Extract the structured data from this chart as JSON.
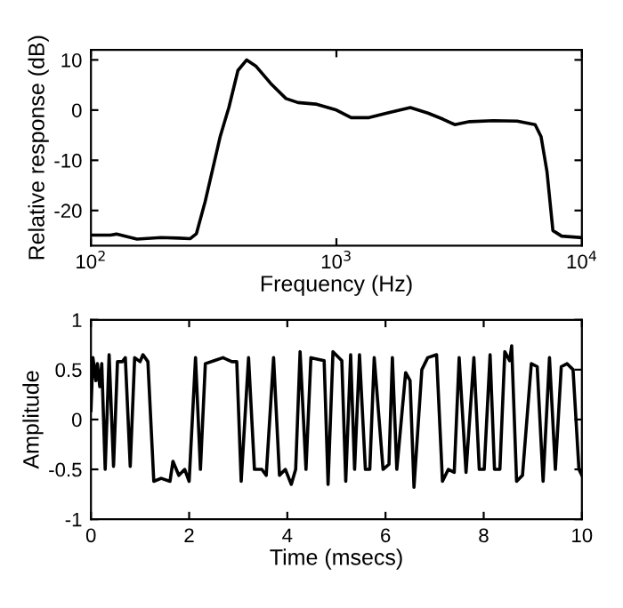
{
  "chart_data": [
    {
      "type": "line",
      "xlabel": "Frequency (Hz)",
      "ylabel": "Relative response (dB)",
      "log": "x",
      "xlim": [
        100,
        10000
      ],
      "ylim": [
        -27,
        12
      ],
      "xticks": [
        {
          "value": 100,
          "label": "10$^{2}$"
        },
        {
          "value": 1000,
          "label": "10$^{3}$"
        },
        {
          "value": 10000,
          "label": "10$^{4}$"
        }
      ],
      "yticks": [
        -20,
        -10,
        0,
        10
      ],
      "grid": false,
      "series": [
        {
          "color": "#000000",
          "x": [
            100,
            120,
            127,
            154,
            193,
            228,
            254,
            269,
            292,
            336,
            365,
            397,
            431,
            469,
            540,
            623,
            697,
            823,
            1000,
            1149,
            1358,
            1605,
            2000,
            2360,
            2715,
            3035,
            3490,
            4360,
            5450,
            6450,
            6820,
            7210,
            7620,
            8270,
            10000
          ],
          "values": [
            -24.9,
            -24.9,
            -24.7,
            -25.7,
            -25.4,
            -25.5,
            -25.6,
            -24.6,
            -18.2,
            -5.3,
            0.6,
            7.9,
            10,
            8.8,
            5.3,
            2.3,
            1.5,
            1.2,
            0,
            -1.5,
            -1.5,
            -0.6,
            0.5,
            -0.6,
            -1.8,
            -2.9,
            -2.3,
            -2.1,
            -2.2,
            -2.9,
            -5.3,
            -12.3,
            -24,
            -25.1,
            -25.4
          ]
        }
      ]
    },
    {
      "type": "line",
      "xlabel": "Time (msecs)",
      "ylabel": "Amplitude",
      "xlim": [
        0,
        10
      ],
      "ylim": [
        -1,
        1
      ],
      "xticks": [
        0,
        2,
        4,
        6,
        8,
        10
      ],
      "yticks": [
        -1,
        -0.5,
        0,
        0.5,
        1
      ],
      "grid": false,
      "series": [
        {
          "color": "#000000",
          "x": [
            0,
            0.04,
            0.1,
            0.13,
            0.18,
            0.22,
            0.29,
            0.37,
            0.46,
            0.54,
            0.64,
            0.7,
            0.8,
            0.89,
            1.0,
            1.06,
            1.16,
            1.28,
            1.43,
            1.61,
            1.67,
            1.79,
            1.91,
            2.0,
            2.13,
            2.23,
            2.33,
            2.51,
            2.69,
            2.87,
            2.97,
            3.06,
            3.21,
            3.33,
            3.48,
            3.57,
            3.72,
            3.84,
            3.96,
            4.08,
            4.17,
            4.26,
            4.38,
            4.48,
            4.75,
            4.83,
            4.93,
            5.11,
            5.19,
            5.29,
            5.37,
            5.47,
            5.59,
            5.68,
            5.77,
            5.95,
            6.07,
            6.14,
            6.23,
            6.41,
            6.5,
            6.58,
            6.74,
            6.86,
            7.04,
            7.16,
            7.28,
            7.4,
            7.5,
            7.64,
            7.8,
            7.91,
            8.01,
            8.13,
            8.22,
            8.33,
            8.43,
            8.53,
            8.57,
            8.67,
            8.79,
            8.97,
            9.09,
            9.21,
            9.34,
            9.46,
            9.58,
            9.7,
            9.82,
            9.94,
            10.0
          ],
          "values": [
            0.09,
            0.62,
            0.39,
            0.56,
            0.33,
            0.56,
            -0.5,
            0.65,
            -0.47,
            0.58,
            0.58,
            0.62,
            -0.47,
            0.62,
            0.58,
            0.65,
            0.58,
            -0.62,
            -0.59,
            -0.62,
            -0.42,
            -0.56,
            -0.5,
            -0.62,
            0.62,
            -0.5,
            0.56,
            0.59,
            0.62,
            0.58,
            0.58,
            -0.62,
            0.62,
            -0.5,
            -0.5,
            -0.56,
            0.62,
            -0.56,
            -0.5,
            -0.65,
            -0.5,
            0.68,
            -0.5,
            0.62,
            0.59,
            -0.65,
            0.68,
            0.59,
            -0.62,
            0.65,
            -0.5,
            0.65,
            -0.5,
            -0.5,
            0.62,
            -0.5,
            -0.45,
            0.62,
            -0.5,
            0.47,
            0.39,
            -0.68,
            0.5,
            0.62,
            0.65,
            -0.62,
            -0.5,
            -0.53,
            0.62,
            -0.53,
            0.62,
            -0.5,
            -0.5,
            0.65,
            -0.5,
            -0.5,
            0.68,
            0.59,
            0.74,
            -0.62,
            -0.56,
            0.56,
            0.53,
            -0.62,
            0.62,
            -0.5,
            0.53,
            0.56,
            0.5,
            -0.5,
            -0.56
          ]
        }
      ]
    }
  ]
}
